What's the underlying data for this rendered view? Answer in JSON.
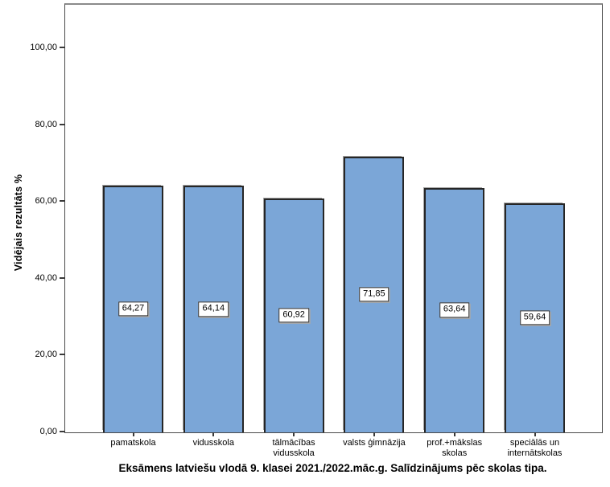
{
  "chart_data": {
    "type": "bar",
    "title": "Eksāmens latviešu vlodā 9. klasei 2021./2022.māc.g. Salīdzinājums pēc skolas tipa.",
    "xlabel": "",
    "ylabel": "Vidējais rezultāts %",
    "categories": [
      "pamatskola",
      "vidusskola",
      "tālmācības\nvidusskola",
      "valsts ģimnāzija",
      "prof.+mākslas\nskolas",
      "speciālās un\ninternātskolas"
    ],
    "values": [
      64.27,
      64.14,
      60.92,
      71.85,
      63.64,
      59.64
    ],
    "value_labels": [
      "64,27",
      "64,14",
      "60,92",
      "71,85",
      "63,64",
      "59,64"
    ],
    "ylim": [
      0,
      111.3
    ],
    "yticks": [
      0,
      20,
      40,
      60,
      80,
      100
    ],
    "ytick_labels": [
      "0,00",
      "20,00",
      "40,00",
      "60,00",
      "80,00",
      "100,00"
    ],
    "grid": false,
    "legend": "none",
    "bar_color": "#7BA6D7",
    "bar_border_color": "#262626",
    "axis_color": "#4a4a4a",
    "decimal_separator": ","
  }
}
